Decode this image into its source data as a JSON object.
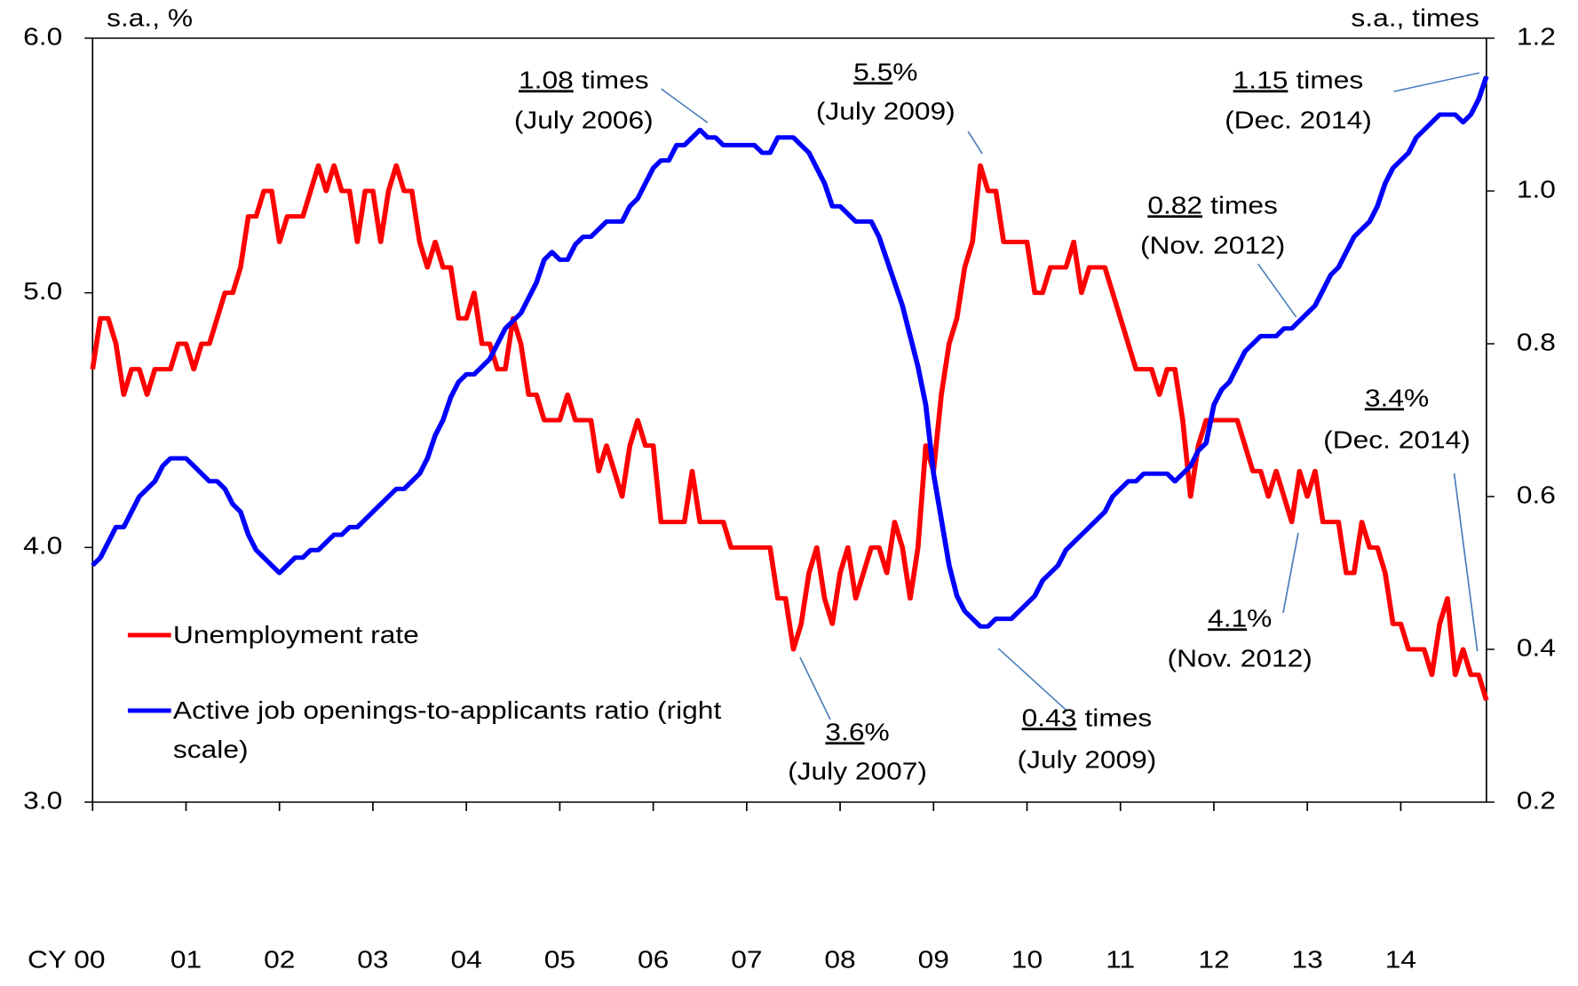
{
  "chart_data": {
    "type": "line",
    "y_label": "s.a., %",
    "y2_label": "s.a., times",
    "x": [
      0,
      1,
      2,
      3,
      4,
      5,
      6,
      7,
      8,
      9,
      10,
      11,
      12,
      13,
      14,
      15,
      16,
      17,
      18,
      19,
      20,
      21,
      22,
      23,
      24,
      25,
      26,
      27,
      28,
      29,
      30,
      31,
      32,
      33,
      34,
      35,
      36,
      37,
      38,
      39,
      40,
      41,
      42,
      43,
      44,
      45,
      46,
      47,
      48,
      49,
      50,
      51,
      52,
      53,
      54,
      55,
      56,
      57,
      58,
      59,
      60,
      61,
      62,
      63,
      64,
      65,
      66,
      67,
      68,
      69,
      70,
      71,
      72,
      73,
      74,
      75,
      76,
      77,
      78,
      79,
      80,
      81,
      82,
      83,
      84,
      85,
      86,
      87,
      88,
      89,
      90,
      91,
      92,
      93,
      94,
      95,
      96,
      97,
      98,
      99,
      100,
      101,
      102,
      103,
      104,
      105,
      106,
      107,
      108,
      109,
      110,
      111,
      112,
      113,
      114,
      115,
      116,
      117,
      118,
      119,
      120,
      121,
      122,
      123,
      124,
      125,
      126,
      127,
      128,
      129,
      130,
      131,
      132,
      133,
      134,
      135,
      136,
      137,
      138,
      139,
      140,
      141,
      142,
      143,
      144,
      145,
      146,
      147,
      148,
      149,
      150,
      151,
      152,
      153,
      154,
      155,
      156,
      157,
      158,
      159,
      160,
      161,
      162,
      163,
      164,
      165,
      166,
      167,
      168,
      169,
      170,
      171,
      172,
      173,
      174,
      175,
      176,
      177,
      178,
      179
    ],
    "xlim": [
      0,
      179
    ],
    "xticks": [
      {
        "value": 0,
        "label": "CY 00"
      },
      {
        "value": 12,
        "label": "01"
      },
      {
        "value": 24,
        "label": "02"
      },
      {
        "value": 36,
        "label": "03"
      },
      {
        "value": 48,
        "label": "04"
      },
      {
        "value": 60,
        "label": "05"
      },
      {
        "value": 72,
        "label": "06"
      },
      {
        "value": 84,
        "label": "07"
      },
      {
        "value": 96,
        "label": "08"
      },
      {
        "value": 108,
        "label": "09"
      },
      {
        "value": 120,
        "label": "10"
      },
      {
        "value": 132,
        "label": "11"
      },
      {
        "value": 144,
        "label": "12"
      },
      {
        "value": 156,
        "label": "13"
      },
      {
        "value": 168,
        "label": "14"
      }
    ],
    "ylim": [
      3,
      6
    ],
    "yticks": [
      {
        "value": 3,
        "label": "3.0"
      },
      {
        "value": 4,
        "label": "4.0"
      },
      {
        "value": 5,
        "label": "5.0"
      },
      {
        "value": 6,
        "label": "6.0"
      }
    ],
    "y2lim": [
      0.2,
      1.2
    ],
    "y2ticks": [
      0.2,
      0.4,
      0.6,
      0.8,
      {
        "value": 1,
        "label": "1.0"
      },
      1.2
    ],
    "series": [
      {
        "name": "Unemployment rate",
        "color": "#ff0000",
        "axis": "y",
        "values": [
          4.7,
          4.9,
          4.9,
          4.8,
          4.6,
          4.7,
          4.7,
          4.6,
          4.7,
          4.7,
          4.7,
          4.8,
          4.8,
          4.7,
          4.8,
          4.8,
          4.9,
          5.0,
          5.0,
          5.1,
          5.3,
          5.3,
          5.4,
          5.4,
          5.2,
          5.3,
          5.3,
          5.3,
          5.4,
          5.5,
          5.4,
          5.5,
          5.4,
          5.4,
          5.2,
          5.4,
          5.4,
          5.2,
          5.4,
          5.5,
          5.4,
          5.4,
          5.2,
          5.1,
          5.2,
          5.1,
          5.1,
          4.9,
          4.9,
          5.0,
          4.8,
          4.8,
          4.7,
          4.7,
          4.9,
          4.8,
          4.6,
          4.6,
          4.5,
          4.5,
          4.5,
          4.6,
          4.5,
          4.5,
          4.5,
          4.3,
          4.4,
          4.3,
          4.2,
          4.4,
          4.5,
          4.4,
          4.4,
          4.1,
          4.1,
          4.1,
          4.1,
          4.3,
          4.1,
          4.1,
          4.1,
          4.1,
          4.0,
          4.0,
          4.0,
          4.0,
          4.0,
          4.0,
          3.8,
          3.8,
          3.6,
          3.7,
          3.9,
          4.0,
          3.8,
          3.7,
          3.9,
          4.0,
          3.8,
          3.9,
          4.0,
          4.0,
          3.9,
          4.1,
          4.0,
          3.8,
          4.0,
          4.4,
          4.3,
          4.6,
          4.8,
          4.9,
          5.1,
          5.2,
          5.5,
          5.4,
          5.4,
          5.2,
          5.2,
          5.2,
          5.2,
          5.0,
          5.0,
          5.1,
          5.1,
          5.1,
          5.2,
          5.0,
          5.1,
          5.1,
          5.1,
          5.0,
          4.9,
          4.8,
          4.7,
          4.7,
          4.7,
          4.6,
          4.7,
          4.7,
          4.5,
          4.2,
          4.4,
          4.5,
          4.5,
          4.5,
          4.5,
          4.5,
          4.4,
          4.3,
          4.3,
          4.2,
          4.3,
          4.2,
          4.1,
          4.3,
          4.2,
          4.3,
          4.1,
          4.1,
          4.1,
          3.9,
          3.9,
          4.1,
          4.0,
          4.0,
          3.9,
          3.7,
          3.7,
          3.6,
          3.6,
          3.6,
          3.5,
          3.7,
          3.8,
          3.5,
          3.6,
          3.5,
          3.5,
          3.4
        ]
      },
      {
        "name": "Active job openings-to-applicants ratio (right scale)",
        "color": "#0000ff",
        "axis": "y2",
        "values": [
          0.51,
          0.52,
          0.54,
          0.56,
          0.56,
          0.58,
          0.6,
          0.61,
          0.62,
          0.64,
          0.65,
          0.65,
          0.65,
          0.64,
          0.63,
          0.62,
          0.62,
          0.61,
          0.59,
          0.58,
          0.55,
          0.53,
          0.52,
          0.51,
          0.5,
          0.51,
          0.52,
          0.52,
          0.53,
          0.53,
          0.54,
          0.55,
          0.55,
          0.56,
          0.56,
          0.57,
          0.58,
          0.59,
          0.6,
          0.61,
          0.61,
          0.62,
          0.63,
          0.65,
          0.68,
          0.7,
          0.73,
          0.75,
          0.76,
          0.76,
          0.77,
          0.78,
          0.8,
          0.82,
          0.83,
          0.84,
          0.86,
          0.88,
          0.91,
          0.92,
          0.91,
          0.91,
          0.93,
          0.94,
          0.94,
          0.95,
          0.96,
          0.96,
          0.96,
          0.98,
          0.99,
          1.01,
          1.03,
          1.04,
          1.04,
          1.06,
          1.06,
          1.07,
          1.08,
          1.07,
          1.07,
          1.06,
          1.06,
          1.06,
          1.06,
          1.06,
          1.05,
          1.05,
          1.07,
          1.07,
          1.07,
          1.06,
          1.05,
          1.03,
          1.01,
          0.98,
          0.98,
          0.97,
          0.96,
          0.96,
          0.96,
          0.94,
          0.91,
          0.88,
          0.85,
          0.81,
          0.77,
          0.72,
          0.63,
          0.57,
          0.51,
          0.47,
          0.45,
          0.44,
          0.43,
          0.43,
          0.44,
          0.44,
          0.44,
          0.45,
          0.46,
          0.47,
          0.49,
          0.5,
          0.51,
          0.53,
          0.54,
          0.55,
          0.56,
          0.57,
          0.58,
          0.6,
          0.61,
          0.62,
          0.62,
          0.63,
          0.63,
          0.63,
          0.63,
          0.62,
          0.63,
          0.64,
          0.66,
          0.67,
          0.72,
          0.74,
          0.75,
          0.77,
          0.79,
          0.8,
          0.81,
          0.81,
          0.81,
          0.82,
          0.82,
          0.83,
          0.84,
          0.85,
          0.87,
          0.89,
          0.9,
          0.92,
          0.94,
          0.95,
          0.96,
          0.98,
          1.01,
          1.03,
          1.04,
          1.05,
          1.07,
          1.08,
          1.09,
          1.1,
          1.1,
          1.1,
          1.09,
          1.1,
          1.12,
          1.15
        ]
      }
    ],
    "annotations": [
      {
        "unit": "times",
        "date": "(July 2006)"
      },
      {
        "unit": "%",
        "date": "(July 2009)"
      },
      {
        "unit": "times",
        "date": "(Dec. 2014)"
      },
      {
        "unit": "times",
        "date": "(Nov. 2012)"
      },
      {
        "unit": "%",
        "date": "(Dec. 2014)"
      },
      {
        "unit": "%",
        "date": "(Nov. 2012)"
      },
      {
        "unit": "%",
        "date": "(July 2007)"
      },
      {
        "unit": "times",
        "date": "(July 2009)"
      }
    ],
    "legend": "lower left"
  }
}
